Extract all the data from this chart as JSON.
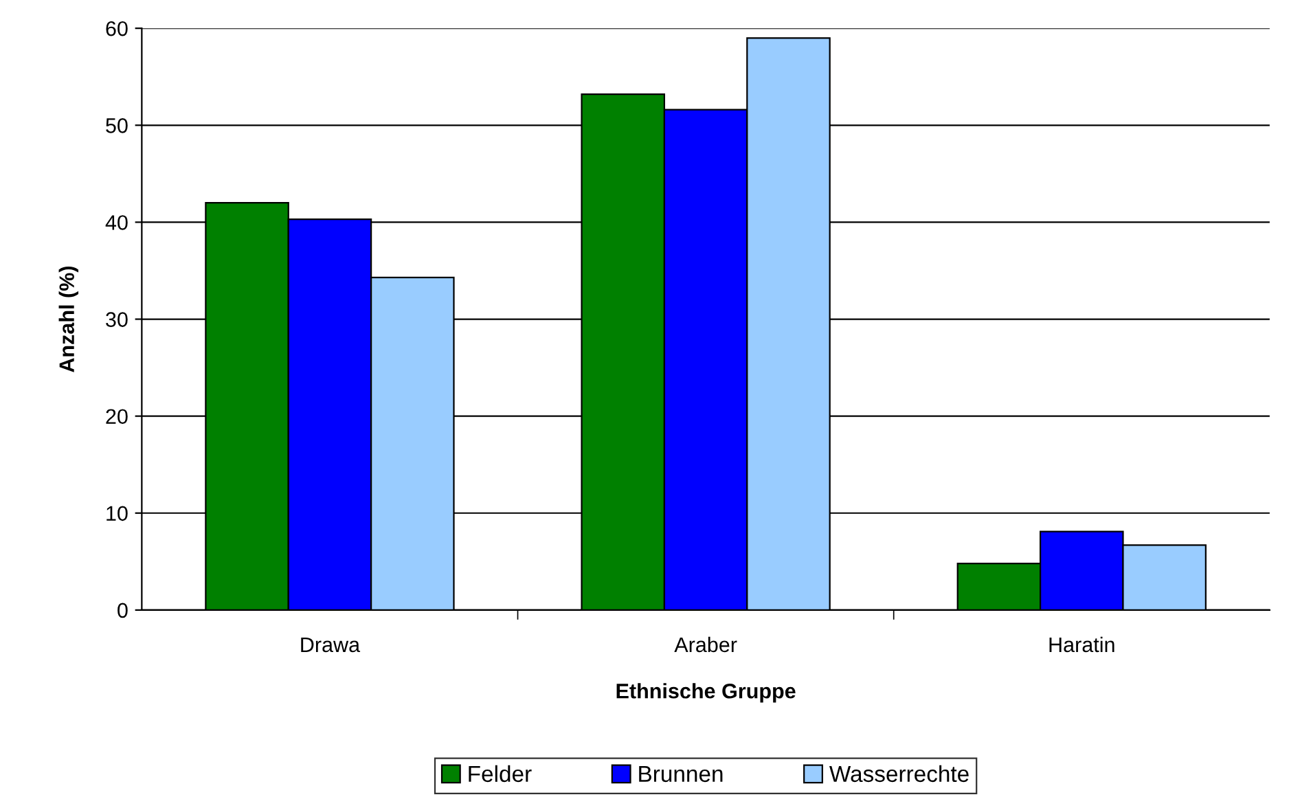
{
  "chart_data": {
    "type": "bar",
    "xlabel": "Ethnische Gruppe",
    "ylabel": "Anzahl (%)",
    "categories": [
      "Drawa",
      "Araber",
      "Haratin"
    ],
    "series": [
      {
        "name": "Felder",
        "color": "#008000",
        "values": [
          42.0,
          53.2,
          4.8
        ]
      },
      {
        "name": "Brunnen",
        "color": "#0000ff",
        "values": [
          40.3,
          51.6,
          8.1
        ]
      },
      {
        "name": "Wasserrechte",
        "color": "#99ccff",
        "values": [
          34.3,
          59.0,
          6.7
        ]
      }
    ],
    "ylim": [
      0,
      60
    ],
    "yticks": [
      0,
      10,
      20,
      30,
      40,
      50,
      60
    ],
    "grid": "y",
    "legend": "bottom"
  }
}
